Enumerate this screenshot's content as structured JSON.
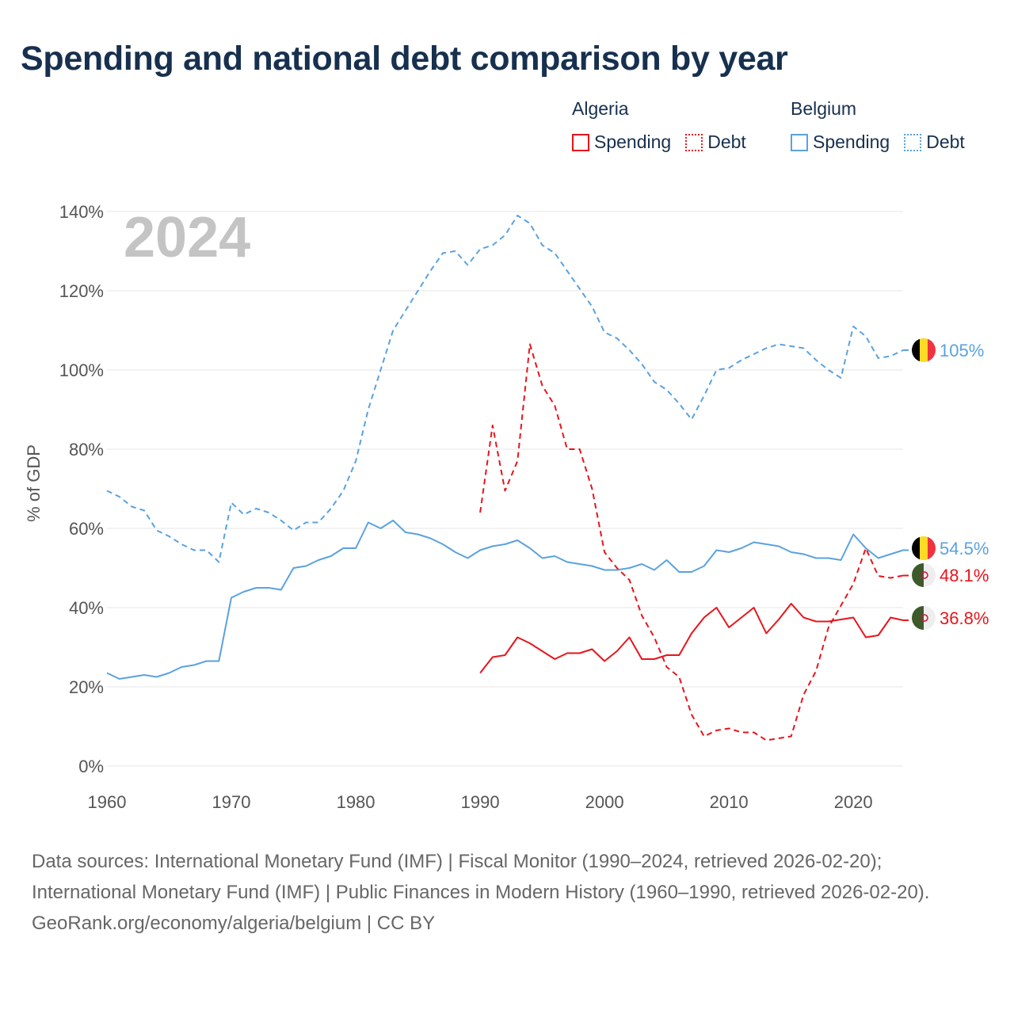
{
  "title": "Spending and national debt comparison by year",
  "legend": {
    "groups": [
      {
        "name": "Algeria",
        "spending": "Spending",
        "debt": "Debt"
      },
      {
        "name": "Belgium",
        "spending": "Spending",
        "debt": "Debt"
      }
    ]
  },
  "colors": {
    "algeria": "#e8141b",
    "belgium": "#5aa2e0",
    "grid": "#e4e4e4"
  },
  "flags": {
    "algeria": "algeria-flag-icon",
    "belgium": "belgium-flag-icon"
  },
  "footer": {
    "sources": "Data sources: International Monetary Fund (IMF) | Fiscal Monitor (1990–2024, retrieved 2026-02-20); International Monetary Fund (IMF) | Public Finances in Modern History (1960–1990, retrieved 2026-02-20).",
    "credit": "GeoRank.org/economy/algeria/belgium | CC BY"
  },
  "chart_data": {
    "type": "line",
    "title": "Spending and national debt comparison by year",
    "year_label": "2024",
    "xlabel": "",
    "ylabel": "% of GDP",
    "xlim": [
      1960,
      2024
    ],
    "ylim": [
      0,
      140
    ],
    "x_ticks": [
      1960,
      1970,
      1980,
      1990,
      2000,
      2010,
      2020
    ],
    "y_ticks": [
      0,
      20,
      40,
      60,
      80,
      100,
      120,
      140
    ],
    "y_tick_labels": [
      "0%",
      "20%",
      "40%",
      "60%",
      "80%",
      "100%",
      "120%",
      "140%"
    ],
    "grid": true,
    "series": [
      {
        "name": "Belgium Debt",
        "country": "belgium",
        "style": "dashed",
        "start": 1960,
        "values": [
          69.5,
          68,
          65.5,
          64.5,
          59.5,
          58,
          56,
          54.5,
          54.5,
          51.5,
          66.5,
          63.5,
          65,
          64,
          62,
          59.5,
          61.5,
          61.5,
          65,
          69.5,
          77,
          90,
          100,
          110,
          115,
          120,
          125,
          129.5,
          130,
          126.5,
          130.5,
          131.5,
          134,
          139,
          137,
          131.5,
          129.5,
          125,
          120.5,
          116,
          109.5,
          108,
          105,
          101.5,
          97,
          95,
          91.5,
          87.5,
          93.5,
          100,
          100.5,
          102.5,
          104,
          105.5,
          106.5,
          106,
          105.5,
          102.5,
          100,
          98,
          111,
          108.5,
          103,
          103.5,
          105
        ],
        "end_label": "105%"
      },
      {
        "name": "Belgium Spending",
        "country": "belgium",
        "style": "solid",
        "start": 1960,
        "values": [
          23.5,
          22,
          22.5,
          23,
          22.5,
          23.5,
          25,
          25.5,
          26.5,
          26.5,
          42.5,
          44,
          45,
          45,
          44.5,
          50,
          50.5,
          52,
          53,
          55,
          55,
          61.5,
          60,
          62,
          59,
          58.5,
          57.5,
          56,
          54,
          52.5,
          54.5,
          55.5,
          56,
          57,
          55,
          52.5,
          53,
          51.5,
          51,
          50.5,
          49.5,
          49.5,
          50,
          51,
          49.5,
          52,
          49,
          49,
          50.5,
          54.5,
          54,
          55,
          56.5,
          56,
          55.5,
          54,
          53.5,
          52.5,
          52.5,
          52,
          58.5,
          55,
          52.5,
          53.5,
          54.5
        ],
        "end_label": "54.5%"
      },
      {
        "name": "Algeria Debt",
        "country": "algeria",
        "style": "dashed",
        "start": 1990,
        "values": [
          64,
          86,
          69.5,
          77,
          106.5,
          96,
          91,
          80,
          80,
          70,
          54,
          50,
          47,
          38,
          32.5,
          25,
          22.5,
          13,
          7.5,
          9,
          9.5,
          8.5,
          8.5,
          6.5,
          7,
          7.5,
          18,
          24,
          35,
          40.5,
          46,
          55,
          48,
          47.5,
          48.1
        ],
        "end_label": "48.1%"
      },
      {
        "name": "Algeria Spending",
        "country": "algeria",
        "style": "solid",
        "start": 1990,
        "values": [
          23.5,
          27.5,
          28,
          32.5,
          31,
          29,
          27,
          28.5,
          28.5,
          29.5,
          26.5,
          29,
          32.5,
          27,
          27,
          28,
          28,
          33.5,
          37.5,
          40,
          35,
          37.5,
          40,
          33.5,
          37,
          41,
          37.5,
          36.5,
          36.5,
          37,
          37.5,
          32.5,
          33,
          37.5,
          36.8
        ],
        "end_label": "36.8%"
      }
    ]
  }
}
